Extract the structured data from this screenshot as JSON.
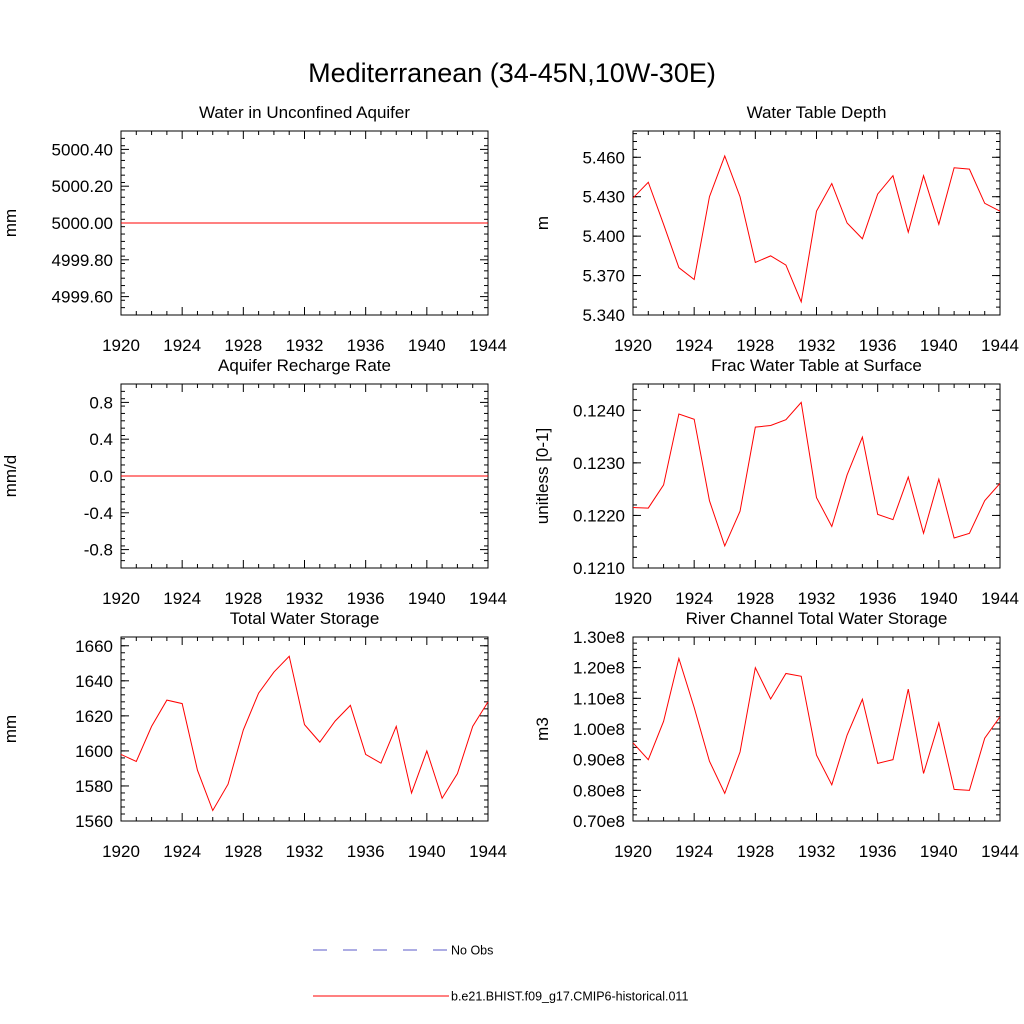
{
  "figure": {
    "title": "Mediterranean (34-45N,10W-30E)",
    "legend": {
      "placement": "bottom",
      "entries": [
        {
          "label": "No Obs",
          "color": "#5b5bc8",
          "style": "dashed"
        },
        {
          "label": "b.e21.BHIST.f09_g17.CMIP6-historical.011",
          "color": "#ff0000",
          "style": "solid"
        }
      ]
    }
  },
  "chart_data": [
    {
      "type": "line",
      "title": "Water in Unconfined Aquifer",
      "ylabel": "mm",
      "xlim": [
        1920,
        1944
      ],
      "ylim": [
        4999.5,
        5000.5
      ],
      "x_ticks": [
        1920,
        1924,
        1928,
        1932,
        1936,
        1940,
        1944
      ],
      "x_tick_labels": [
        "1920",
        "1924",
        "1928",
        "1932",
        "1936",
        "1940",
        "1944"
      ],
      "y_ticks": [
        4999.6,
        4999.8,
        5000.0,
        5000.2,
        5000.4
      ],
      "y_tick_labels": [
        "4999.60",
        "4999.80",
        "5000.00",
        "5000.20",
        "5000.40"
      ],
      "series": [
        {
          "color": "#ff0000",
          "x": [
            1920,
            1944
          ],
          "values": [
            5000.0,
            5000.0
          ]
        }
      ]
    },
    {
      "type": "line",
      "title": "Water Table Depth",
      "ylabel": "m",
      "xlim": [
        1920,
        1944
      ],
      "ylim": [
        5.34,
        5.48
      ],
      "x_ticks": [
        1920,
        1924,
        1928,
        1932,
        1936,
        1940,
        1944
      ],
      "x_tick_labels": [
        "1920",
        "1924",
        "1928",
        "1932",
        "1936",
        "1940",
        "1944"
      ],
      "y_ticks": [
        5.34,
        5.37,
        5.4,
        5.43,
        5.46
      ],
      "y_tick_labels": [
        "5.340",
        "5.370",
        "5.400",
        "5.430",
        "5.460"
      ],
      "series": [
        {
          "color": "#ff0000",
          "x": [
            1920,
            1921,
            1922,
            1923,
            1924,
            1925,
            1926,
            1927,
            1928,
            1929,
            1930,
            1931,
            1932,
            1933,
            1934,
            1935,
            1936,
            1937,
            1938,
            1939,
            1940,
            1941,
            1942,
            1943,
            1944
          ],
          "values": [
            5.429,
            5.441,
            5.409,
            5.376,
            5.367,
            5.43,
            5.461,
            5.43,
            5.38,
            5.385,
            5.378,
            5.35,
            5.419,
            5.44,
            5.41,
            5.398,
            5.432,
            5.446,
            5.403,
            5.446,
            5.409,
            5.452,
            5.451,
            5.425,
            5.419
          ]
        }
      ]
    },
    {
      "type": "line",
      "title": "Aquifer Recharge Rate",
      "ylabel": "mm/d",
      "xlim": [
        1920,
        1944
      ],
      "ylim": [
        -1.0,
        1.0
      ],
      "x_ticks": [
        1920,
        1924,
        1928,
        1932,
        1936,
        1940,
        1944
      ],
      "x_tick_labels": [
        "1920",
        "1924",
        "1928",
        "1932",
        "1936",
        "1940",
        "1944"
      ],
      "y_ticks": [
        -0.8,
        -0.4,
        0.0,
        0.4,
        0.8
      ],
      "y_tick_labels": [
        "-0.8",
        "-0.4",
        "0.0",
        "0.4",
        "0.8"
      ],
      "series": [
        {
          "color": "#ff0000",
          "x": [
            1920,
            1944
          ],
          "values": [
            0.0,
            0.0
          ]
        }
      ]
    },
    {
      "type": "line",
      "title": "Frac Water Table at Surface",
      "ylabel": "unitless [0-1]",
      "xlim": [
        1920,
        1944
      ],
      "ylim": [
        0.121,
        0.1245
      ],
      "x_ticks": [
        1920,
        1924,
        1928,
        1932,
        1936,
        1940,
        1944
      ],
      "x_tick_labels": [
        "1920",
        "1924",
        "1928",
        "1932",
        "1936",
        "1940",
        "1944"
      ],
      "y_ticks": [
        0.121,
        0.122,
        0.123,
        0.124
      ],
      "y_tick_labels": [
        "0.1210",
        "0.1220",
        "0.1230",
        "0.1240"
      ],
      "series": [
        {
          "color": "#ff0000",
          "x": [
            1920,
            1921,
            1922,
            1923,
            1924,
            1925,
            1926,
            1927,
            1928,
            1929,
            1930,
            1931,
            1932,
            1933,
            1934,
            1935,
            1936,
            1937,
            1938,
            1939,
            1940,
            1941,
            1942,
            1943,
            1944
          ],
          "values": [
            0.12215,
            0.12214,
            0.12258,
            0.12393,
            0.12383,
            0.12228,
            0.12142,
            0.12208,
            0.12368,
            0.12371,
            0.12382,
            0.12415,
            0.12234,
            0.12179,
            0.12277,
            0.12349,
            0.12202,
            0.12192,
            0.12273,
            0.12166,
            0.12269,
            0.12157,
            0.12166,
            0.12228,
            0.12261
          ]
        }
      ]
    },
    {
      "type": "line",
      "title": "Total Water Storage",
      "ylabel": "mm",
      "xlim": [
        1920,
        1944
      ],
      "ylim": [
        1560,
        1665
      ],
      "x_ticks": [
        1920,
        1924,
        1928,
        1932,
        1936,
        1940,
        1944
      ],
      "x_tick_labels": [
        "1920",
        "1924",
        "1928",
        "1932",
        "1936",
        "1940",
        "1944"
      ],
      "y_ticks": [
        1560,
        1580,
        1600,
        1620,
        1640,
        1660
      ],
      "y_tick_labels": [
        "1560",
        "1580",
        "1600",
        "1620",
        "1640",
        "1660"
      ],
      "series": [
        {
          "color": "#ff0000",
          "x": [
            1920,
            1921,
            1922,
            1923,
            1924,
            1925,
            1926,
            1927,
            1928,
            1929,
            1930,
            1931,
            1932,
            1933,
            1934,
            1935,
            1936,
            1937,
            1938,
            1939,
            1940,
            1941,
            1942,
            1943,
            1944
          ],
          "values": [
            1598,
            1594,
            1614,
            1629,
            1627,
            1589,
            1566,
            1581,
            1612,
            1633,
            1645,
            1654,
            1615,
            1605,
            1617,
            1626,
            1598,
            1593,
            1614,
            1576,
            1600,
            1573,
            1587,
            1614,
            1628
          ]
        }
      ]
    },
    {
      "type": "line",
      "title": "River Channel Total Water Storage",
      "ylabel": "m3",
      "xlim": [
        1920,
        1944
      ],
      "ylim": [
        70000000,
        130000000
      ],
      "x_ticks": [
        1920,
        1924,
        1928,
        1932,
        1936,
        1940,
        1944
      ],
      "x_tick_labels": [
        "1920",
        "1924",
        "1928",
        "1932",
        "1936",
        "1940",
        "1944"
      ],
      "y_ticks": [
        70000000,
        80000000,
        90000000,
        100000000,
        110000000,
        120000000,
        130000000
      ],
      "y_tick_labels": [
        "0.70e8",
        "0.80e8",
        "0.90e8",
        "1.00e8",
        "1.10e8",
        "1.20e8",
        "1.30e8"
      ],
      "series": [
        {
          "color": "#ff0000",
          "x": [
            1920,
            1921,
            1922,
            1923,
            1924,
            1925,
            1926,
            1927,
            1928,
            1929,
            1930,
            1931,
            1932,
            1933,
            1934,
            1935,
            1936,
            1937,
            1938,
            1939,
            1940,
            1941,
            1942,
            1943,
            1944
          ],
          "values": [
            95500000,
            90000000,
            102500000,
            123000000,
            107000000,
            89500000,
            79000000,
            92500000,
            120000000,
            109800000,
            118100000,
            117200000,
            91500000,
            81800000,
            98000000,
            109700000,
            88800000,
            90000000,
            113000000,
            85500000,
            102000000,
            80300000,
            80000000,
            97000000,
            104000000
          ]
        }
      ]
    }
  ]
}
